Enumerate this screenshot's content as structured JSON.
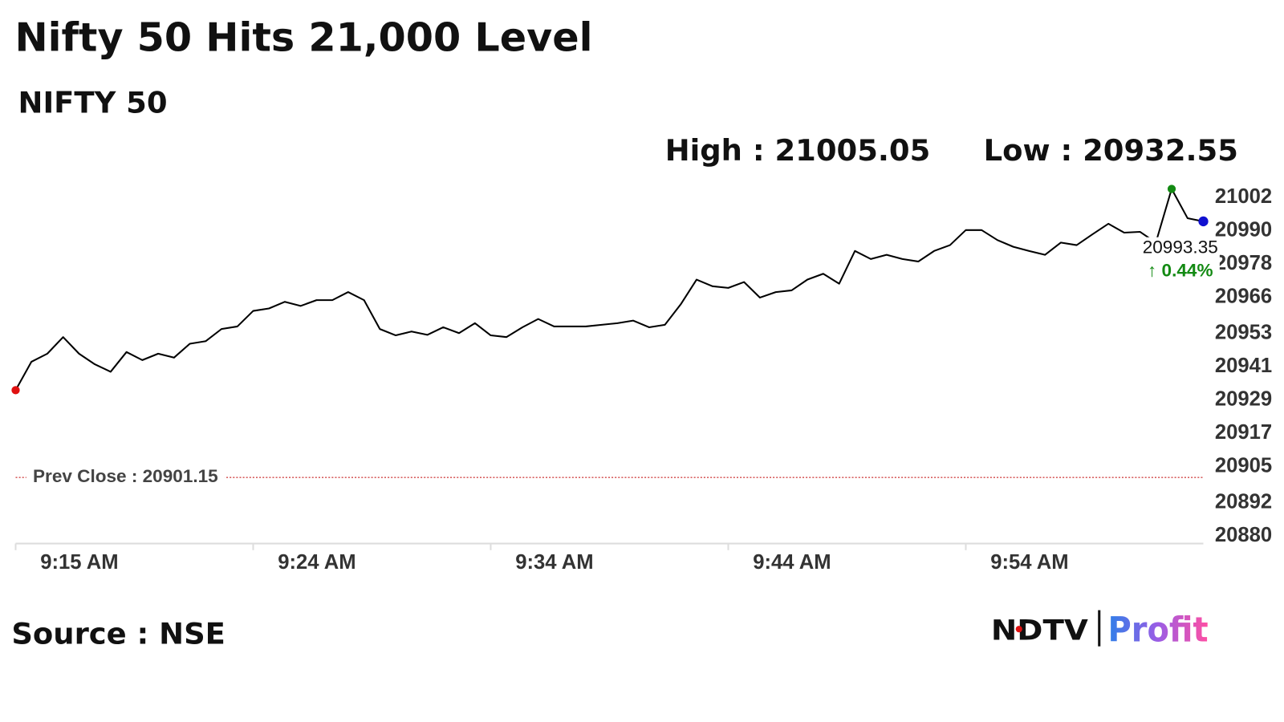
{
  "title": "Nifty 50 Hits 21,000 Level",
  "subtitle": "NIFTY 50",
  "source": "Source : NSE",
  "logo": {
    "brand": "NDTV",
    "product": "Profit"
  },
  "chart_data": {
    "type": "line",
    "high_label": "High :",
    "high": 21005.05,
    "high_color": "#138a13",
    "low_label": "Low :",
    "low": 20932.55,
    "low_color": "#e01010",
    "last_color": "#1010d0",
    "prev_close_label": "Prev Close :",
    "prev_close": 20901.15,
    "prev_close_color": "#c00000",
    "change": {
      "value": 0.44,
      "label": "0.44%"
    },
    "change_color": "#138a13",
    "series": [
      {
        "color": "#000000",
        "values": [
          20932.55,
          20942.8,
          20945.7,
          20951.7,
          20945.7,
          20941.9,
          20939.2,
          20946.3,
          20943.4,
          20945.7,
          20944.3,
          20949.3,
          20950.2,
          20954.6,
          20955.5,
          20961.1,
          20962.0,
          20964.4,
          20962.9,
          20965.0,
          20965.0,
          20967.9,
          20965.0,
          20954.6,
          20952.3,
          20953.7,
          20952.5,
          20955.2,
          20953.1,
          20956.7,
          20952.3,
          20951.7,
          20955.2,
          20958.2,
          20955.5,
          20955.5,
          20955.5,
          20956.1,
          20956.7,
          20957.6,
          20955.2,
          20956.1,
          20963.5,
          20972.4,
          20970.0,
          20969.4,
          20971.5,
          20965.9,
          20967.9,
          20968.5,
          20972.4,
          20974.5,
          20970.9,
          20982.7,
          20979.8,
          20981.3,
          20979.8,
          20978.9,
          20982.7,
          20984.8,
          20990.2,
          20990.2,
          20986.6,
          20984.2,
          20982.7,
          20981.3,
          20985.7,
          20984.8,
          20988.7,
          20992.5,
          20989.3,
          20989.6,
          20985.7,
          21005.05,
          20994.5,
          20993.35
        ]
      }
    ],
    "xlim": [
      0,
      75
    ],
    "xticks": [
      {
        "value": 0,
        "label": "9:15 AM"
      },
      {
        "value": 15,
        "label": "9:24 AM"
      },
      {
        "value": 30,
        "label": "9:34 AM"
      },
      {
        "value": 45,
        "label": "9:44 AM"
      },
      {
        "value": 60,
        "label": "9:54 AM"
      }
    ],
    "ylim": [
      20880,
      21002
    ],
    "yticks": [
      21002,
      20990,
      20978,
      20966,
      20953,
      20941,
      20929,
      20917,
      20905,
      20892,
      20880
    ]
  }
}
